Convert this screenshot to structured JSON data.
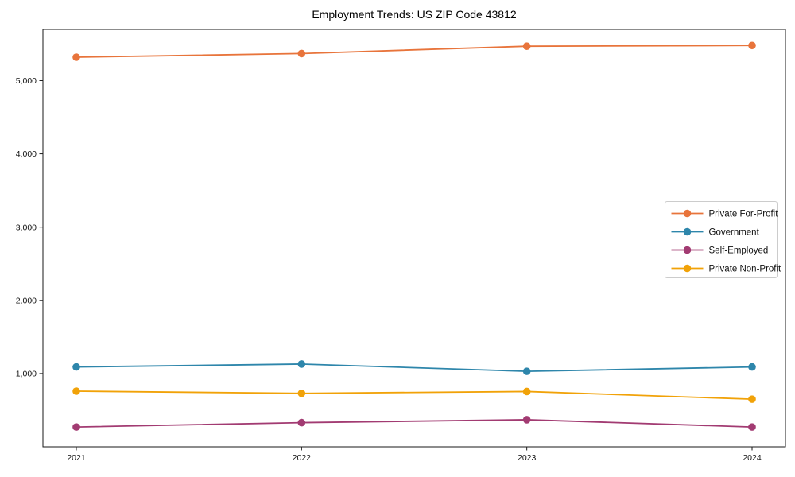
{
  "chart_data": {
    "type": "line",
    "title": "Employment Trends: US ZIP Code 43812",
    "xlabel": "",
    "ylabel": "",
    "categories": [
      "2021",
      "2022",
      "2023",
      "2024"
    ],
    "series": [
      {
        "name": "Private For-Profit",
        "color": "#e8743b",
        "values": [
          5320,
          5370,
          5470,
          5480
        ]
      },
      {
        "name": "Government",
        "color": "#2e86ab",
        "values": [
          1090,
          1130,
          1030,
          1090
        ]
      },
      {
        "name": "Self-Employed",
        "color": "#a23b72",
        "values": [
          270,
          330,
          370,
          270
        ]
      },
      {
        "name": "Private Non-Profit",
        "color": "#f1a208",
        "values": [
          760,
          730,
          755,
          650
        ]
      }
    ],
    "ylim": [
      0,
      5700
    ],
    "yticks": [
      {
        "value": 1000,
        "label": "1,000"
      },
      {
        "value": 2000,
        "label": "2,000"
      },
      {
        "value": 3000,
        "label": "3,000"
      },
      {
        "value": 4000,
        "label": "4,000"
      },
      {
        "value": 5000,
        "label": "5,000"
      }
    ],
    "grid": false,
    "marker": "circle",
    "legend_position": "inside-center-right"
  }
}
